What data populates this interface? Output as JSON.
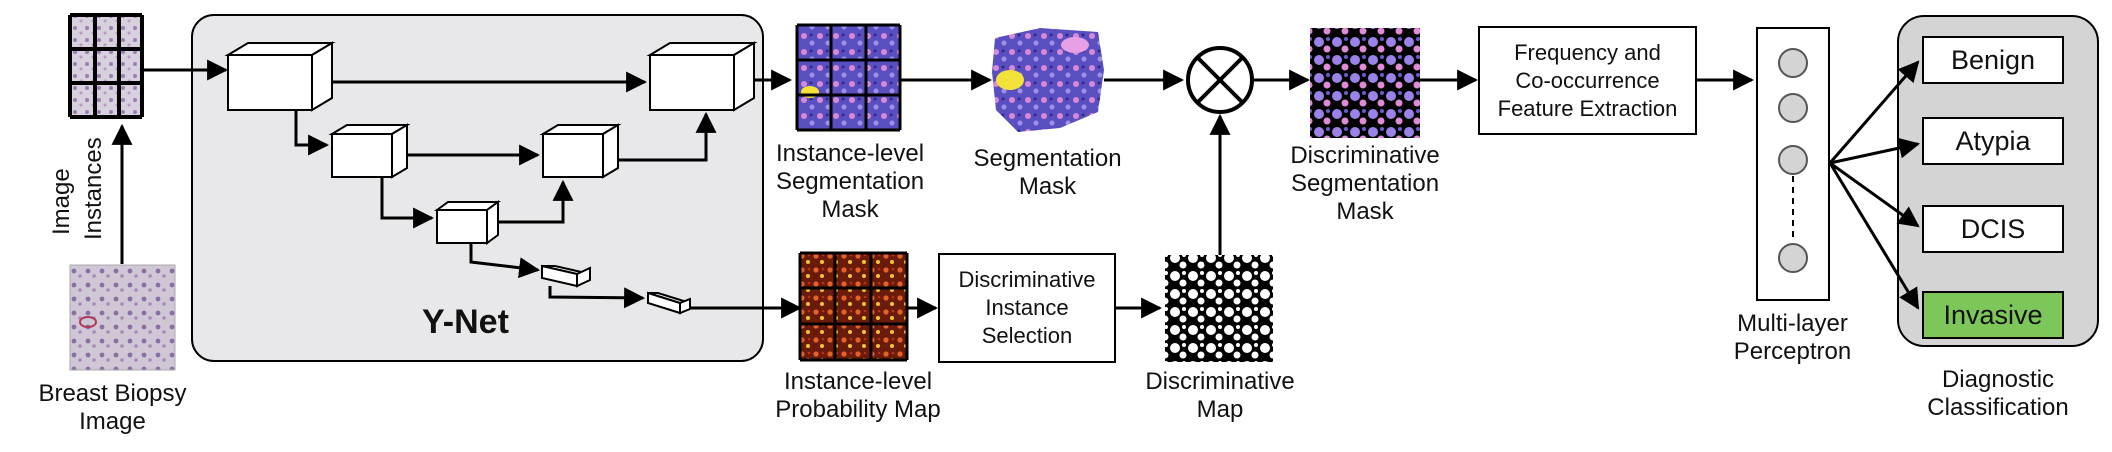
{
  "input": {
    "side_label": [
      "Image",
      "Instances"
    ],
    "bottom_label": [
      "Breast Biopsy",
      "Image"
    ]
  },
  "ynet": {
    "title": "Y-Net"
  },
  "outputs": {
    "seg_instance_label": [
      "Instance-level",
      "Segmentation",
      "Mask"
    ],
    "prob_instance_label": [
      "Instance-level",
      "Probability Map"
    ],
    "seg_mask_label": [
      "Segmentation",
      "Mask"
    ],
    "disc_map_label": [
      "Discriminative",
      "Map"
    ],
    "disc_seg_label": [
      "Discriminative",
      "Segmentation",
      "Mask"
    ]
  },
  "boxes": {
    "instance_selection": [
      "Discriminative",
      "Instance",
      "Selection"
    ],
    "feature_extraction": [
      "Frequency and",
      "Co-occurrence",
      "Feature Extraction"
    ]
  },
  "mlp": {
    "label": [
      "Multi-layer",
      "Perceptron"
    ]
  },
  "classification": {
    "label": [
      "Diagnostic",
      "Classification"
    ],
    "classes": [
      {
        "name": "Benign",
        "highlight": false
      },
      {
        "name": "Atypia",
        "highlight": false
      },
      {
        "name": "DCIS",
        "highlight": false
      },
      {
        "name": "Invasive",
        "highlight": true
      }
    ],
    "highlight_color": "#7dc65a"
  },
  "colors": {
    "panel_fill": "#e8e8ea",
    "classification_fill": "#d4d4d4",
    "seg_purple": "#6f63c8",
    "seg_pink": "#d88ad8",
    "heat_dark": "#6b1b0a",
    "heat_bright": "#f2c43a"
  }
}
